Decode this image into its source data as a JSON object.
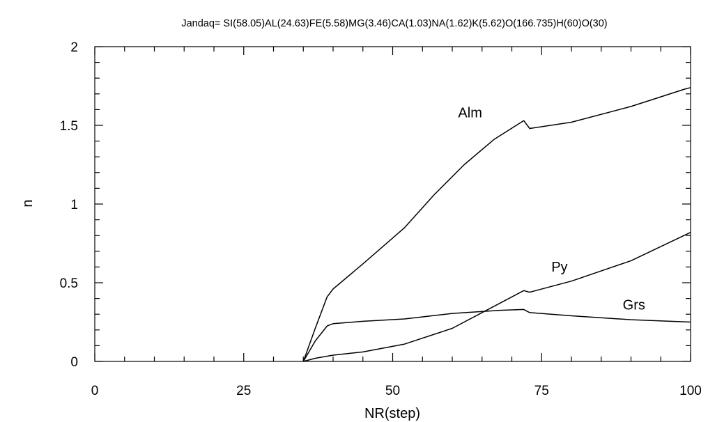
{
  "chart_data": {
    "type": "line",
    "title": "Jandaq= SI(58.05)AL(24.63)FE(5.58)MG(3.46)CA(1.03)NA(1.62)K(5.62)O(166.735)H(60)O(30)",
    "xlabel": "NR(step)",
    "ylabel": "n",
    "xlim": [
      0,
      100
    ],
    "ylim": [
      0,
      2
    ],
    "x_ticks": [
      0,
      25,
      50,
      75,
      100
    ],
    "y_ticks": [
      0,
      0.5,
      1,
      1.5,
      2
    ],
    "x_tick_labels": [
      "0",
      "25",
      "50",
      "75",
      "100"
    ],
    "y_tick_labels": [
      "0",
      "0.5",
      "1",
      "1.5",
      "2"
    ],
    "grid": false,
    "series": [
      {
        "name": "Alm",
        "x": [
          35,
          37,
          39,
          40,
          45,
          52,
          57,
          62,
          67,
          72,
          73,
          80,
          90,
          99,
          100
        ],
        "y": [
          0,
          0.21,
          0.41,
          0.46,
          0.62,
          0.85,
          1.06,
          1.25,
          1.41,
          1.53,
          1.48,
          1.52,
          1.62,
          1.73,
          1.74
        ]
      },
      {
        "name": "Py",
        "x": [
          35,
          37,
          40,
          45,
          52,
          60,
          66,
          72,
          73,
          80,
          90,
          100
        ],
        "y": [
          0,
          0.02,
          0.04,
          0.06,
          0.11,
          0.21,
          0.33,
          0.45,
          0.44,
          0.51,
          0.64,
          0.82
        ]
      },
      {
        "name": "Grs",
        "x": [
          35,
          37,
          39,
          40,
          45,
          52,
          60,
          68,
          72,
          73,
          80,
          90,
          100
        ],
        "y": [
          0,
          0.13,
          0.225,
          0.24,
          0.255,
          0.27,
          0.305,
          0.325,
          0.33,
          0.31,
          0.29,
          0.265,
          0.25
        ]
      }
    ],
    "annotations": [
      {
        "text": "Alm",
        "x": 63,
        "y": 1.55
      },
      {
        "text": "Py",
        "x": 78,
        "y": 0.57
      },
      {
        "text": "Grs",
        "x": 90.5,
        "y": 0.33
      }
    ]
  }
}
